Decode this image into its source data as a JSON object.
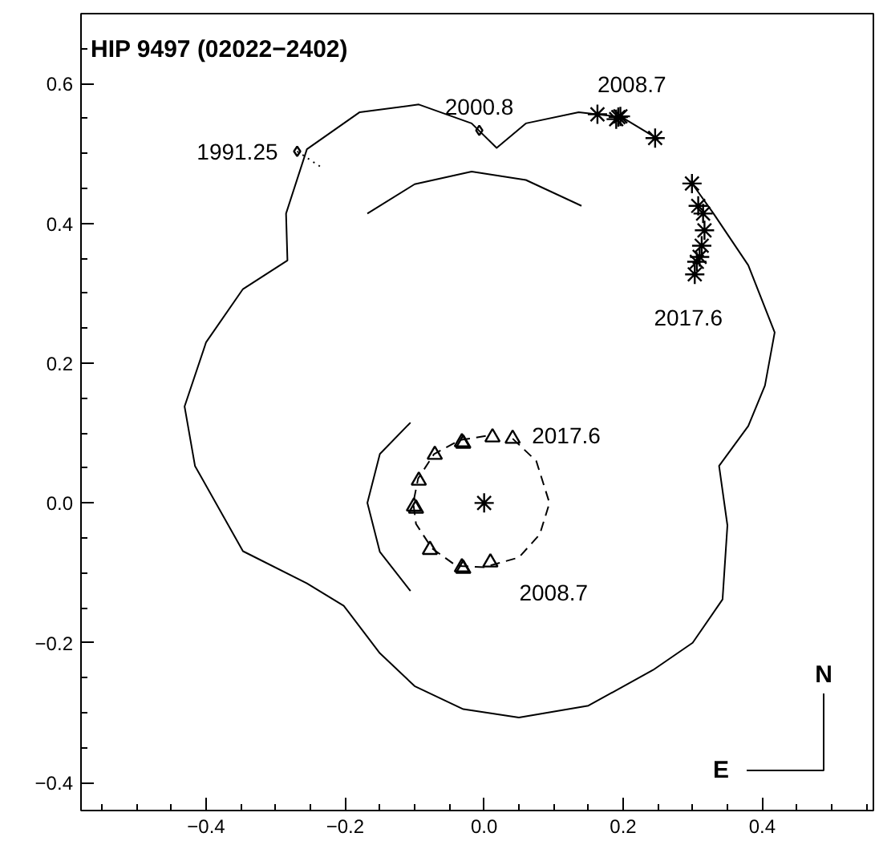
{
  "chart_data": {
    "type": "line",
    "title": "HIP 9497 (02022−2402)",
    "xlim": [
      -0.58,
      0.56
    ],
    "ylim": [
      -0.44,
      0.7
    ],
    "xticks": [
      {
        "value": -0.4,
        "label": "−0.4"
      },
      {
        "value": -0.2,
        "label": "−0.2"
      },
      {
        "value": 0,
        "label": "0.0"
      },
      {
        "value": 0.2,
        "label": "0.2"
      },
      {
        "value": 0.4,
        "label": "0.4"
      }
    ],
    "yticks": [
      {
        "value": -0.4,
        "label": "−0.4"
      },
      {
        "value": -0.2,
        "label": "−0.2"
      },
      {
        "value": 0,
        "label": "0.0"
      },
      {
        "value": 0.2,
        "label": "0.2"
      },
      {
        "value": 0.4,
        "label": "0.4"
      },
      {
        "value": 0.6,
        "label": "0.6"
      }
    ],
    "grid": false,
    "series": [
      {
        "color": "#000000",
        "line_style": "solid",
        "x": [
          0.297,
          0.33,
          0.38,
          0.418,
          0.404,
          0.38,
          0.338,
          0.35,
          0.343,
          0.3,
          0.243,
          0.15,
          0.05,
          -0.03,
          -0.1,
          -0.15,
          -0.202,
          -0.255,
          -0.347,
          -0.416,
          -0.431,
          -0.4,
          -0.347,
          -0.283,
          -0.285,
          -0.255,
          -0.179,
          -0.094,
          -0.018,
          0.018,
          0.06,
          0.136,
          0.198,
          0.251
        ],
        "values": [
          0.46,
          0.414,
          0.34,
          0.244,
          0.168,
          0.11,
          0.053,
          -0.032,
          -0.138,
          -0.2,
          -0.239,
          -0.29,
          -0.307,
          -0.295,
          -0.262,
          -0.215,
          -0.147,
          -0.115,
          -0.069,
          0.053,
          0.138,
          0.23,
          0.306,
          0.347,
          0.414,
          0.506,
          0.559,
          0.57,
          0.543,
          0.508,
          0.543,
          0.559,
          0.552,
          0.52
        ]
      },
      {
        "type": "scatter",
        "color": "#000000",
        "marker": "cross",
        "x": [
          0.163,
          0.19,
          0.193,
          0.196,
          0.246,
          0.299,
          0.308,
          0.315,
          0.317,
          0.313,
          0.31,
          0.306,
          0.303
        ],
        "values": [
          0.556,
          0.549,
          0.552,
          0.553,
          0.522,
          0.457,
          0.425,
          0.414,
          0.39,
          0.368,
          0.352,
          0.345,
          0.327
        ]
      },
      {
        "type": "scatter",
        "color": "#000000",
        "marker": "diamond",
        "x": [
          -0.269,
          -0.007
        ],
        "values": [
          0.503,
          0.533
        ]
      },
      {
        "color": "#000000",
        "line_style": "dotted",
        "x": [
          -0.269,
          -0.234
        ],
        "values": [
          0.503,
          0.48
        ]
      },
      {
        "color": "#000000",
        "line_style": "dashed",
        "x": [
          0.041,
          0.075,
          0.094,
          0.08,
          0.05,
          0.0,
          -0.04,
          -0.075,
          -0.098,
          -0.102,
          -0.095,
          -0.072,
          -0.035,
          0.01
        ],
        "values": [
          0.092,
          0.06,
          0.0,
          -0.045,
          -0.078,
          -0.092,
          -0.09,
          -0.065,
          -0.03,
          0.0,
          0.035,
          0.07,
          0.09,
          0.097
        ]
      },
      {
        "type": "scatter",
        "color": "#000000",
        "marker": "triangle",
        "x": [
          0.012,
          0.041,
          -0.032,
          -0.03,
          -0.071,
          -0.094,
          -0.101,
          -0.098,
          -0.078,
          -0.032,
          -0.03,
          0.009
        ],
        "values": [
          0.094,
          0.092,
          0.087,
          0.085,
          0.069,
          0.032,
          -0.005,
          -0.008,
          -0.067,
          -0.092,
          -0.094,
          -0.085
        ]
      },
      {
        "type": "scatter",
        "color": "#000000",
        "marker": "cross",
        "x": [
          0.0
        ],
        "values": [
          0.0
        ]
      },
      {
        "color": "#000000",
        "line_style": "solid",
        "x": [
          -0.168,
          -0.1,
          -0.018,
          0.06,
          0.14
        ],
        "values": [
          0.414,
          0.456,
          0.474,
          0.462,
          0.425
        ]
      },
      {
        "color": "#000000",
        "line_style": "solid",
        "x": [
          -0.106,
          -0.15,
          -0.168,
          -0.15,
          -0.106
        ],
        "values": [
          -0.126,
          -0.07,
          0.0,
          0.07,
          0.115
        ]
      }
    ],
    "annotations": [
      {
        "text": "1991.25",
        "x": -0.269,
        "y": 0.503
      },
      {
        "text": "2000.8",
        "x": -0.007,
        "y": 0.533
      },
      {
        "text": "2008.7",
        "x": 0.163,
        "y": 0.556
      },
      {
        "text": "2017.6",
        "x": 0.303,
        "y": 0.327
      },
      {
        "text": "2017.6",
        "x": 0.041,
        "y": 0.092
      },
      {
        "text": "2008.7",
        "x": 0.009,
        "y": -0.085
      },
      "N",
      "E"
    ]
  }
}
